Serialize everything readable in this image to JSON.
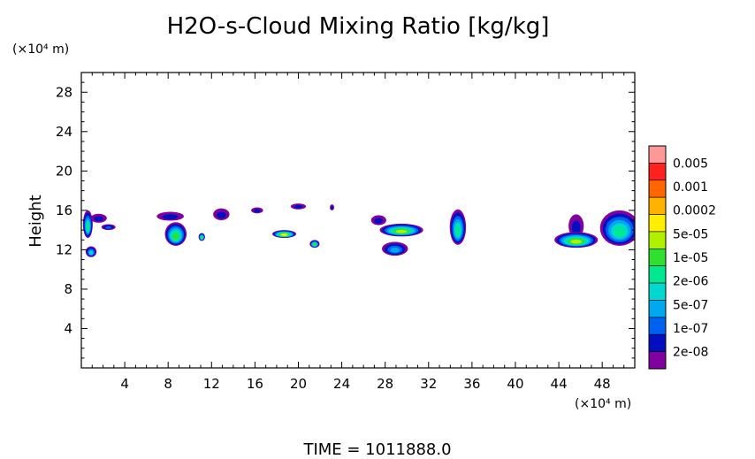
{
  "chart_data": {
    "type": "heatmap",
    "title": "H2O-s-Cloud Mixing Ratio [kg/kg]",
    "ylabel": "Height",
    "y_unit": "(×10⁴ m)",
    "x_unit": "(×10⁴ m)",
    "footer": "TIME = 1011888.0",
    "xlim": [
      0,
      51
    ],
    "ylim": [
      0,
      30
    ],
    "x_ticks": [
      4,
      8,
      12,
      16,
      20,
      24,
      28,
      32,
      36,
      40,
      44,
      48
    ],
    "x_tick_labels": [
      "4",
      "8",
      "12",
      "16",
      "20",
      "24",
      "28",
      "32",
      "36",
      "40",
      "44",
      "48"
    ],
    "y_ticks": [
      4,
      8,
      12,
      16,
      20,
      24,
      28
    ],
    "y_tick_labels": [
      "4",
      "8",
      "12",
      "16",
      "20",
      "24",
      "28"
    ],
    "colorbar": {
      "labels": [
        "0.005",
        "0.001",
        "0.0002",
        "5e-05",
        "1e-05",
        "2e-06",
        "5e-07",
        "1e-07",
        "2e-08"
      ],
      "colors": [
        "#ff9999",
        "#ff2020",
        "#ff6600",
        "#ffb300",
        "#ffee00",
        "#b0f000",
        "#30e030",
        "#00e890",
        "#00d8d0",
        "#00a8f0",
        "#0060f0",
        "#0010c0",
        "#8000a0"
      ]
    },
    "clouds": [
      {
        "x": 0.6,
        "y": 14.6,
        "w": 0.9,
        "h": 2.8,
        "level": 5
      },
      {
        "x": 0.9,
        "y": 11.8,
        "w": 1.0,
        "h": 1.1,
        "level": 4
      },
      {
        "x": 1.6,
        "y": 15.2,
        "w": 1.5,
        "h": 0.9,
        "level": 1
      },
      {
        "x": 2.5,
        "y": 14.3,
        "w": 1.3,
        "h": 0.6,
        "level": 2
      },
      {
        "x": 8.2,
        "y": 15.4,
        "w": 2.5,
        "h": 0.9,
        "level": 1
      },
      {
        "x": 8.7,
        "y": 13.6,
        "w": 2.0,
        "h": 2.4,
        "level": 6
      },
      {
        "x": 11.1,
        "y": 13.3,
        "w": 0.6,
        "h": 0.8,
        "level": 6
      },
      {
        "x": 12.9,
        "y": 15.6,
        "w": 1.5,
        "h": 1.2,
        "level": 1
      },
      {
        "x": 16.2,
        "y": 16.0,
        "w": 1.1,
        "h": 0.6,
        "level": 1
      },
      {
        "x": 20.0,
        "y": 16.4,
        "w": 1.4,
        "h": 0.6,
        "level": 1
      },
      {
        "x": 23.1,
        "y": 16.3,
        "w": 0.4,
        "h": 0.6,
        "level": 1
      },
      {
        "x": 18.7,
        "y": 13.6,
        "w": 2.2,
        "h": 0.8,
        "level": 8
      },
      {
        "x": 21.5,
        "y": 12.6,
        "w": 0.9,
        "h": 0.8,
        "level": 6
      },
      {
        "x": 27.4,
        "y": 15.0,
        "w": 1.4,
        "h": 1.0,
        "level": 1
      },
      {
        "x": 29.5,
        "y": 14.0,
        "w": 4.0,
        "h": 1.3,
        "level": 7
      },
      {
        "x": 28.9,
        "y": 12.1,
        "w": 2.4,
        "h": 1.4,
        "level": 3
      },
      {
        "x": 34.7,
        "y": 14.3,
        "w": 1.5,
        "h": 3.6,
        "level": 5
      },
      {
        "x": 45.6,
        "y": 14.4,
        "w": 1.4,
        "h": 2.4,
        "level": 1
      },
      {
        "x": 45.6,
        "y": 13.0,
        "w": 4.0,
        "h": 1.6,
        "level": 7
      },
      {
        "x": 49.6,
        "y": 14.2,
        "w": 3.6,
        "h": 3.6,
        "level": 5
      }
    ]
  }
}
